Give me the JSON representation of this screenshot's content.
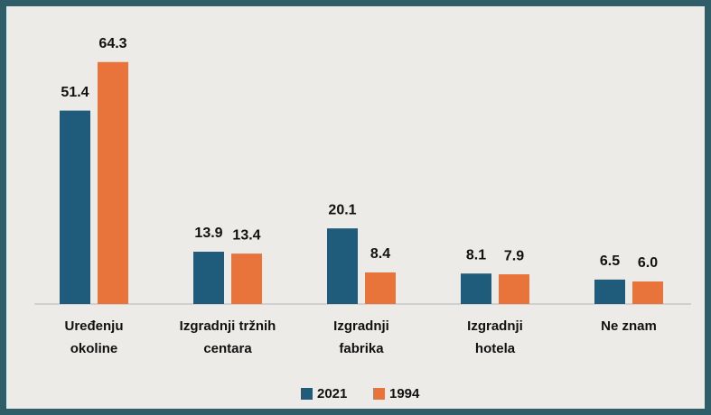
{
  "chart_data": {
    "type": "bar",
    "categories": [
      "Uređenju\nokoline",
      "Izgradnji tržnih\ncentara",
      "Izgradnji\nfabrika",
      "Izgradnji\nhotela",
      "Ne znam"
    ],
    "series": [
      {
        "name": "2021",
        "color": "#1f5b7a",
        "values": [
          51.4,
          13.9,
          20.1,
          8.1,
          6.5
        ]
      },
      {
        "name": "1994",
        "color": "#e8743b",
        "values": [
          64.3,
          13.4,
          8.4,
          7.9,
          6.0
        ]
      }
    ],
    "value_labels": [
      [
        "51.4",
        "13.9",
        "20.1",
        "8.1",
        "6.5"
      ],
      [
        "64.3",
        "13.4",
        "8.4",
        "7.9",
        "6.0"
      ]
    ],
    "ylim": [
      0,
      70
    ],
    "legend": "bottom"
  }
}
